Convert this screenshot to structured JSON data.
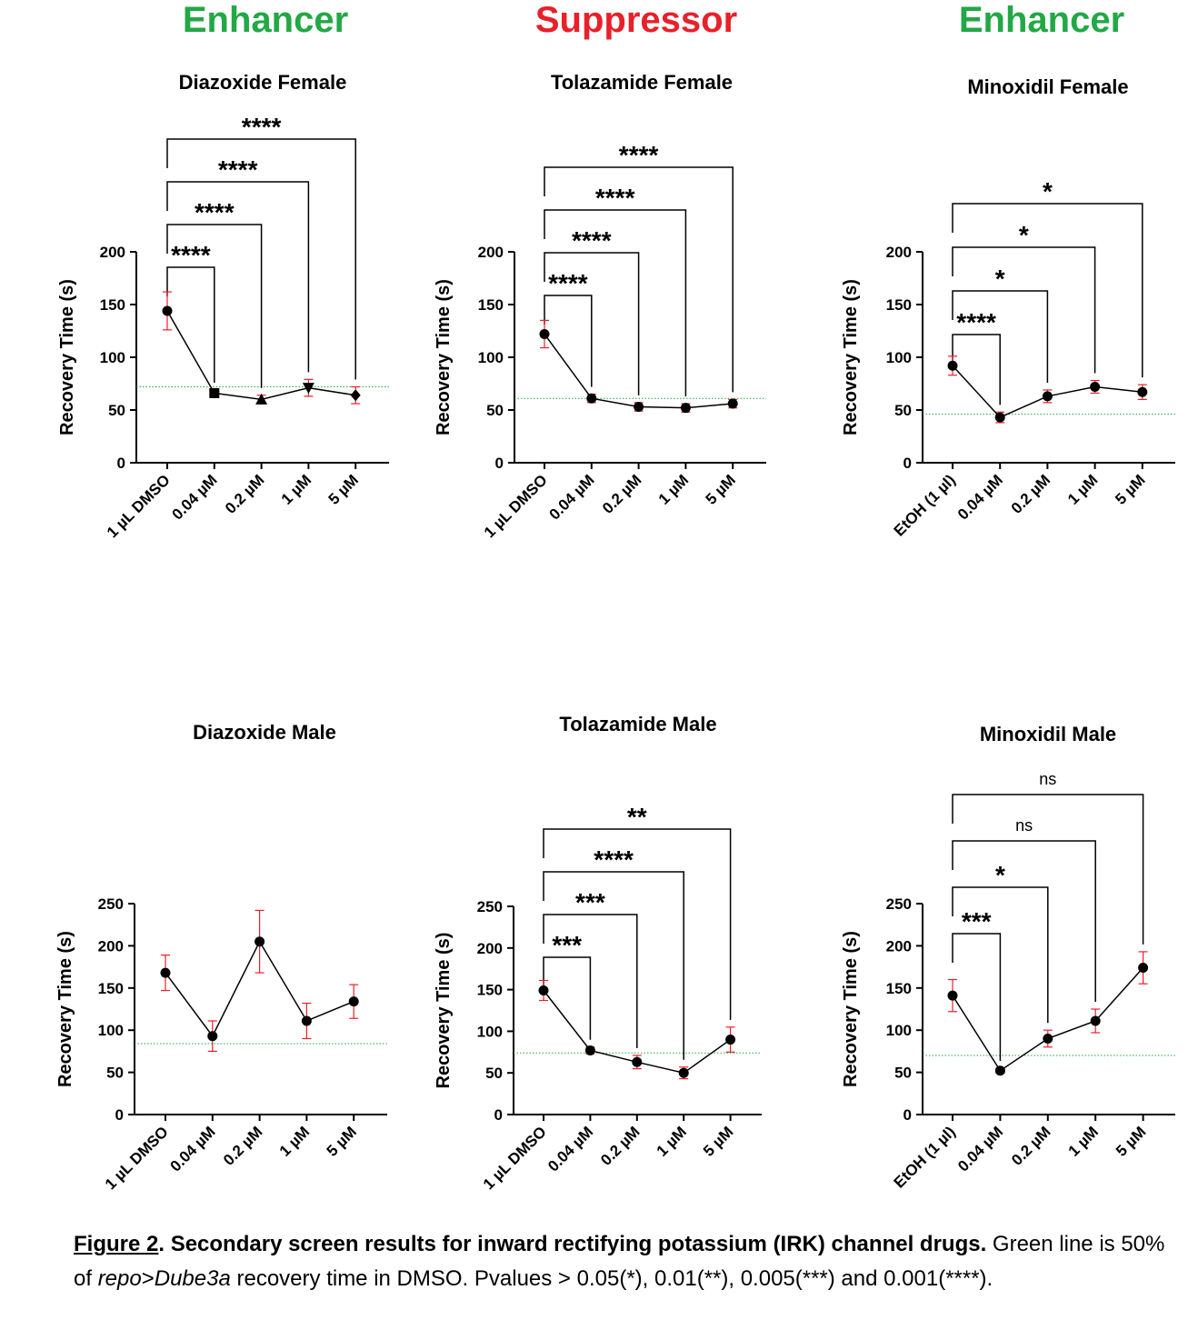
{
  "group_titles": [
    {
      "text": "Enhancer",
      "color": "#22a845"
    },
    {
      "text": "Suppressor",
      "color": "#e8202a"
    },
    {
      "text": "Enhancer",
      "color": "#22a845"
    }
  ],
  "colors": {
    "line": "#000000",
    "error_bar": "#e8202a",
    "reference_line": "#22a845"
  },
  "chart_data": [
    {
      "type": "line",
      "title": "Diazoxide Female",
      "ylabel": "Recovery Time (s)",
      "categories": [
        "1 µL DMSO",
        "0.04 µM",
        "0.2 µM",
        "1 µM",
        "5 µM"
      ],
      "values": [
        144,
        66,
        60,
        71,
        64
      ],
      "errors": [
        18,
        3,
        4,
        8,
        8
      ],
      "markers": [
        "circle",
        "square",
        "triangle",
        "triangle-down",
        "diamond"
      ],
      "ylim": [
        0,
        200
      ],
      "yticks": [
        0,
        50,
        100,
        150,
        200
      ],
      "reference_line": 72,
      "significance": [
        "****",
        "****",
        "****",
        "****"
      ]
    },
    {
      "type": "line",
      "title": "Tolazamide Female",
      "ylabel": "Recovery Time (s)",
      "categories": [
        "1 µL DMSO",
        "0.04 µM",
        "0.2 µM",
        "1 µM",
        "5 µM"
      ],
      "values": [
        122,
        61,
        53,
        52,
        56
      ],
      "errors": [
        13,
        4,
        4,
        4,
        4
      ],
      "markers": [
        "circle",
        "circle",
        "circle",
        "circle",
        "circle"
      ],
      "ylim": [
        0,
        200
      ],
      "yticks": [
        0,
        50,
        100,
        150,
        200
      ],
      "reference_line": 61,
      "significance": [
        "****",
        "****",
        "****",
        "****"
      ]
    },
    {
      "type": "line",
      "title": "Minoxidil Female",
      "ylabel": "Recovery Time (s)",
      "categories": [
        "EtOH (1 µl)",
        "0.04 µM",
        "0.2 µM",
        "1 µM",
        "5 µM"
      ],
      "values": [
        92,
        43,
        63,
        72,
        67
      ],
      "errors": [
        9,
        5,
        6,
        6,
        7
      ],
      "markers": [
        "circle",
        "circle",
        "circle",
        "circle",
        "circle"
      ],
      "ylim": [
        0,
        200
      ],
      "yticks": [
        0,
        50,
        100,
        150,
        200
      ],
      "reference_line": 46,
      "significance": [
        "****",
        "*",
        "*",
        "*"
      ]
    },
    {
      "type": "line",
      "title": "Diazoxide Male",
      "ylabel": "Recovery Time (s)",
      "categories": [
        "1 µL DMSO",
        "0.04 µM",
        "0.2 µM",
        "1 µM",
        "5 µM"
      ],
      "values": [
        168,
        93,
        205,
        111,
        134
      ],
      "errors": [
        21,
        18,
        37,
        21,
        20
      ],
      "markers": [
        "circle",
        "circle",
        "circle",
        "circle",
        "circle"
      ],
      "ylim": [
        0,
        250
      ],
      "yticks": [
        0,
        50,
        100,
        150,
        200,
        250
      ],
      "reference_line": 84,
      "significance": []
    },
    {
      "type": "line",
      "title": "Tolazamide Male",
      "ylabel": "Recovery Time (s)",
      "categories": [
        "1 µL DMSO",
        "0.04 µM",
        "0.2 µM",
        "1 µM",
        "5 µM"
      ],
      "values": [
        149,
        77,
        63,
        50,
        90
      ],
      "errors": [
        12,
        4,
        8,
        7,
        15
      ],
      "markers": [
        "circle",
        "circle",
        "circle",
        "circle",
        "circle"
      ],
      "ylim": [
        0,
        250
      ],
      "yticks": [
        0,
        50,
        100,
        150,
        200,
        250
      ],
      "reference_line": 74,
      "significance": [
        "***",
        "***",
        "****",
        "**"
      ]
    },
    {
      "type": "line",
      "title": "Minoxidil Male",
      "ylabel": "Recovery Time (s)",
      "categories": [
        "EtOH (1 µl)",
        "0.04 µM",
        "0.2 µM",
        "1 µM",
        "5 µM"
      ],
      "values": [
        141,
        52,
        90,
        111,
        174
      ],
      "errors": [
        19,
        3,
        10,
        14,
        19
      ],
      "markers": [
        "circle",
        "circle",
        "circle",
        "circle",
        "circle"
      ],
      "ylim": [
        0,
        250
      ],
      "yticks": [
        0,
        50,
        100,
        150,
        200,
        250
      ],
      "reference_line": 70,
      "significance": [
        "***",
        "*",
        "ns",
        "ns"
      ]
    }
  ],
  "caption": {
    "figure_label": "Figure 2",
    "head": ".  Secondary screen results for inward rectifying potassium (IRK) channel drugs.",
    "body_1": " Green line is 50% of ",
    "genotype_a": "repo",
    "genotype_sep": ">",
    "genotype_b": "Dube3a",
    "body_2": " recovery time in DMSO. Pvalues > 0.05(*), 0.01(**), 0.005(***) and 0.001(****)."
  }
}
